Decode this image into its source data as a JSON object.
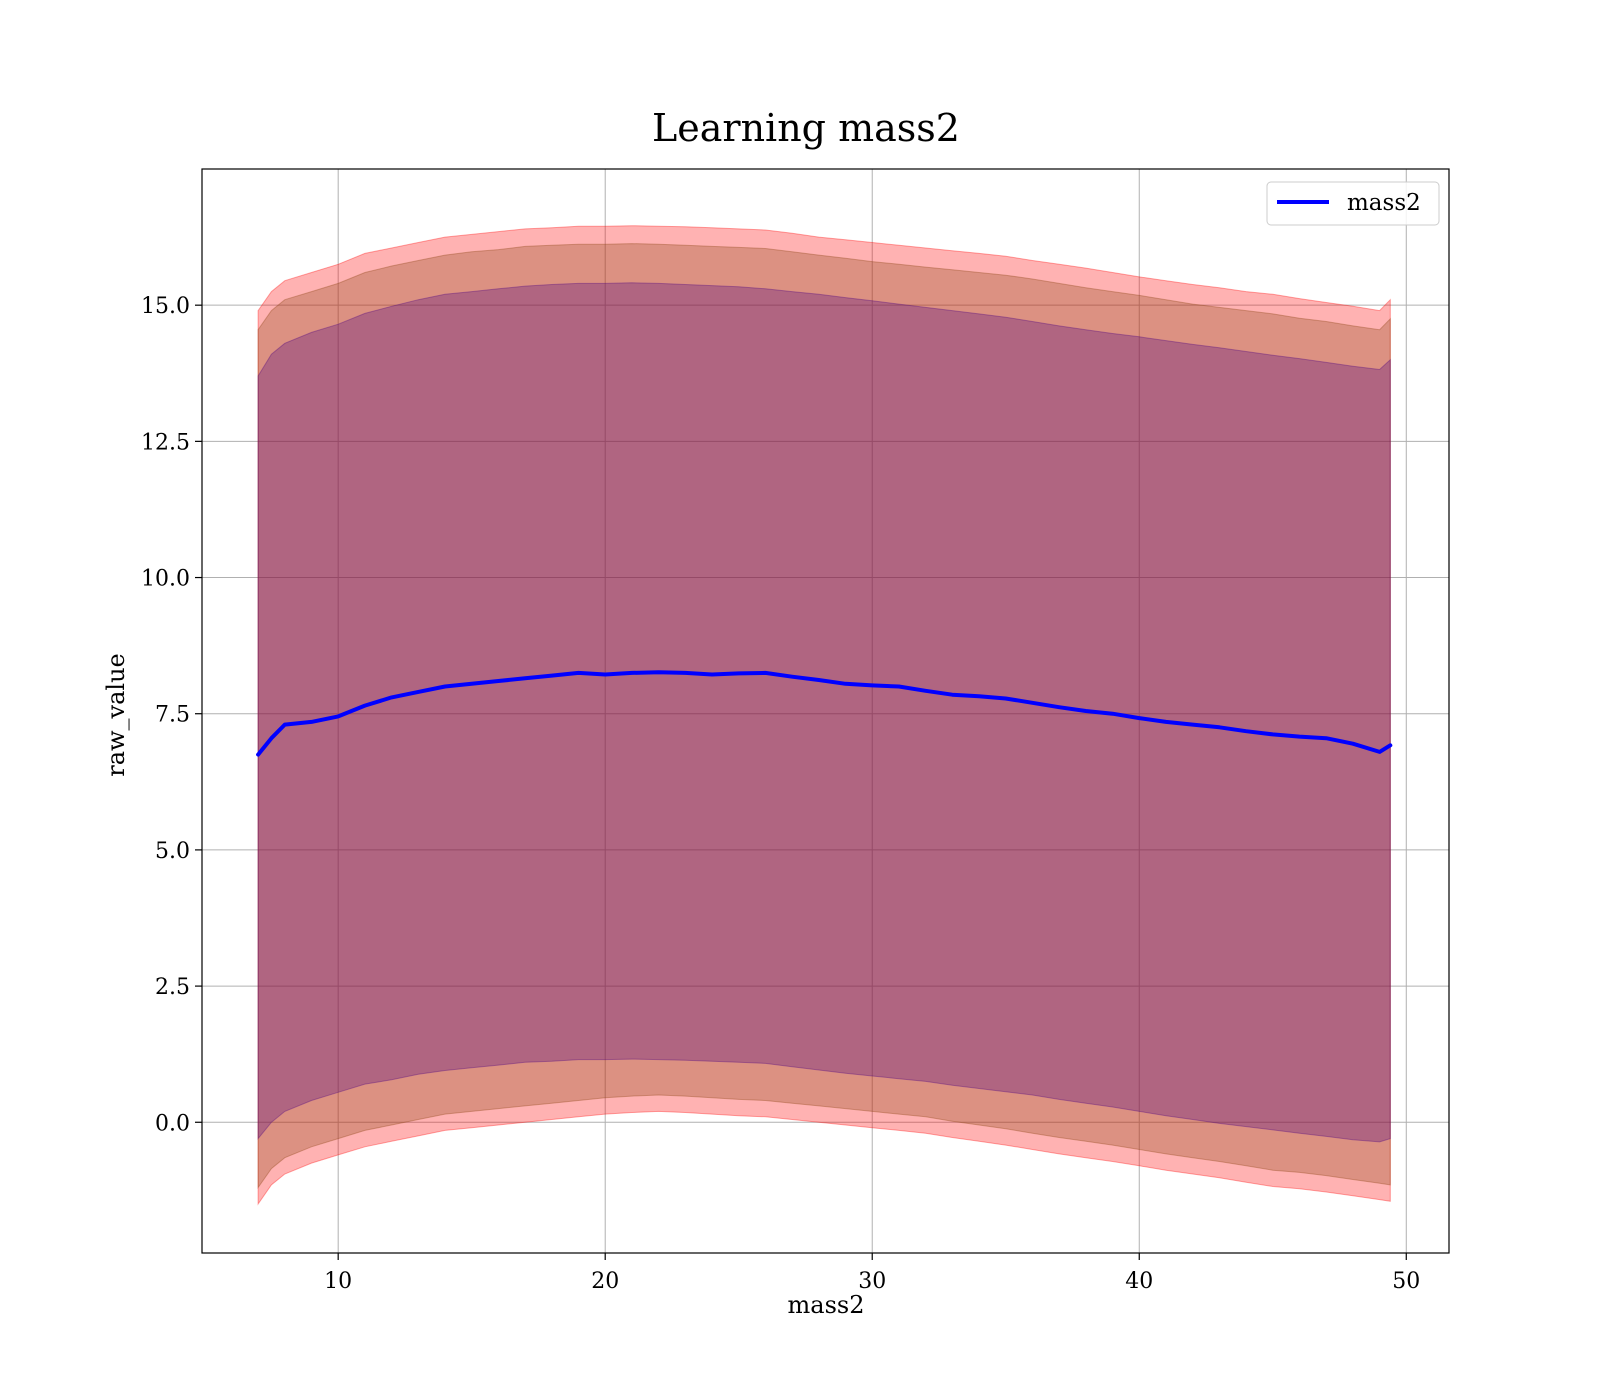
{
  "chart_data": {
    "type": "line",
    "title": "Learning mass2",
    "xlabel": "mass2",
    "ylabel": "raw_value",
    "xlim": [
      4.9,
      51.6
    ],
    "ylim": [
      -2.4,
      17.5
    ],
    "x_ticks": [
      10,
      20,
      30,
      40,
      50
    ],
    "x_tick_labels": [
      "10",
      "20",
      "30",
      "40",
      "50"
    ],
    "y_ticks": [
      0.0,
      2.5,
      5.0,
      7.5,
      10.0,
      12.5,
      15.0
    ],
    "y_tick_labels": [
      "0.0",
      "2.5",
      "5.0",
      "7.5",
      "10.0",
      "12.5",
      "15.0"
    ],
    "grid": true,
    "legend": {
      "position": "top-right",
      "entries": [
        {
          "label": "mass2",
          "color": "#0000ff"
        }
      ]
    },
    "colors": {
      "line": "#0000ff",
      "band_outer": "#ff0000",
      "band_middle": "#8b4513",
      "band_inner": "#4b0082"
    },
    "x": [
      7.0,
      7.5,
      8.0,
      9.0,
      10.0,
      11.0,
      12.0,
      13.0,
      14.0,
      15.0,
      16.0,
      17.0,
      18.0,
      19.0,
      20.0,
      21.0,
      22.0,
      23.0,
      24.0,
      25.0,
      26.0,
      27.0,
      28.0,
      29.0,
      30.0,
      31.0,
      32.0,
      33.0,
      34.0,
      35.0,
      36.0,
      37.0,
      38.0,
      39.0,
      40.0,
      41.0,
      42.0,
      43.0,
      44.0,
      45.0,
      46.0,
      47.0,
      48.0,
      49.0,
      49.4
    ],
    "series": [
      {
        "name": "mass2",
        "values": [
          6.75,
          7.05,
          7.3,
          7.35,
          7.45,
          7.65,
          7.8,
          7.9,
          8.0,
          8.05,
          8.1,
          8.15,
          8.2,
          8.25,
          8.22,
          8.25,
          8.26,
          8.25,
          8.22,
          8.24,
          8.25,
          8.18,
          8.12,
          8.05,
          8.02,
          8.0,
          7.92,
          7.85,
          7.82,
          7.78,
          7.7,
          7.62,
          7.55,
          7.5,
          7.42,
          7.35,
          7.3,
          7.25,
          7.18,
          7.12,
          7.08,
          7.05,
          6.95,
          6.8,
          6.92
        ]
      }
    ],
    "bands": [
      {
        "lower": [
          -1.5,
          -1.15,
          -0.95,
          -0.75,
          -0.6,
          -0.45,
          -0.35,
          -0.25,
          -0.15,
          -0.1,
          -0.05,
          0.0,
          0.05,
          0.1,
          0.15,
          0.18,
          0.2,
          0.18,
          0.15,
          0.12,
          0.1,
          0.05,
          0.0,
          -0.05,
          -0.1,
          -0.15,
          -0.2,
          -0.28,
          -0.35,
          -0.42,
          -0.5,
          -0.58,
          -0.65,
          -0.72,
          -0.8,
          -0.88,
          -0.95,
          -1.02,
          -1.1,
          -1.18,
          -1.22,
          -1.28,
          -1.35,
          -1.42,
          -1.45
        ],
        "upper": [
          14.9,
          15.25,
          15.45,
          15.6,
          15.75,
          15.95,
          16.05,
          16.15,
          16.25,
          16.3,
          16.35,
          16.4,
          16.42,
          16.45,
          16.45,
          16.46,
          16.45,
          16.44,
          16.42,
          16.4,
          16.38,
          16.32,
          16.25,
          16.2,
          16.15,
          16.1,
          16.05,
          16.0,
          15.95,
          15.9,
          15.82,
          15.75,
          15.68,
          15.6,
          15.52,
          15.45,
          15.38,
          15.32,
          15.25,
          15.2,
          15.12,
          15.05,
          14.98,
          14.9,
          15.1
        ]
      },
      {
        "lower": [
          -1.2,
          -0.85,
          -0.65,
          -0.45,
          -0.3,
          -0.15,
          -0.05,
          0.05,
          0.15,
          0.2,
          0.25,
          0.3,
          0.35,
          0.4,
          0.45,
          0.48,
          0.5,
          0.48,
          0.45,
          0.42,
          0.4,
          0.35,
          0.3,
          0.25,
          0.2,
          0.15,
          0.1,
          0.02,
          -0.05,
          -0.12,
          -0.2,
          -0.28,
          -0.35,
          -0.42,
          -0.5,
          -0.58,
          -0.65,
          -0.72,
          -0.8,
          -0.88,
          -0.92,
          -0.98,
          -1.05,
          -1.12,
          -1.15
        ],
        "upper": [
          14.55,
          14.9,
          15.1,
          15.25,
          15.4,
          15.6,
          15.72,
          15.82,
          15.92,
          15.98,
          16.02,
          16.08,
          16.1,
          16.12,
          16.12,
          16.13,
          16.12,
          16.1,
          16.08,
          16.06,
          16.04,
          15.98,
          15.92,
          15.86,
          15.8,
          15.75,
          15.7,
          15.65,
          15.6,
          15.55,
          15.48,
          15.4,
          15.32,
          15.25,
          15.18,
          15.1,
          15.02,
          14.96,
          14.9,
          14.84,
          14.76,
          14.7,
          14.62,
          14.55,
          14.75
        ]
      },
      {
        "lower": [
          -0.3,
          0.0,
          0.2,
          0.4,
          0.55,
          0.7,
          0.78,
          0.88,
          0.95,
          1.0,
          1.05,
          1.1,
          1.12,
          1.15,
          1.15,
          1.16,
          1.15,
          1.14,
          1.12,
          1.1,
          1.08,
          1.02,
          0.96,
          0.9,
          0.85,
          0.8,
          0.75,
          0.68,
          0.62,
          0.56,
          0.5,
          0.42,
          0.35,
          0.28,
          0.2,
          0.12,
          0.05,
          -0.02,
          -0.08,
          -0.14,
          -0.2,
          -0.26,
          -0.32,
          -0.36,
          -0.3
        ],
        "upper": [
          13.7,
          14.1,
          14.3,
          14.5,
          14.65,
          14.85,
          14.98,
          15.1,
          15.2,
          15.25,
          15.3,
          15.35,
          15.38,
          15.4,
          15.4,
          15.41,
          15.4,
          15.38,
          15.36,
          15.34,
          15.3,
          15.25,
          15.2,
          15.14,
          15.08,
          15.02,
          14.96,
          14.9,
          14.84,
          14.78,
          14.7,
          14.62,
          14.55,
          14.48,
          14.42,
          14.35,
          14.28,
          14.22,
          14.15,
          14.08,
          14.02,
          13.95,
          13.88,
          13.82,
          14.0
        ]
      }
    ]
  }
}
